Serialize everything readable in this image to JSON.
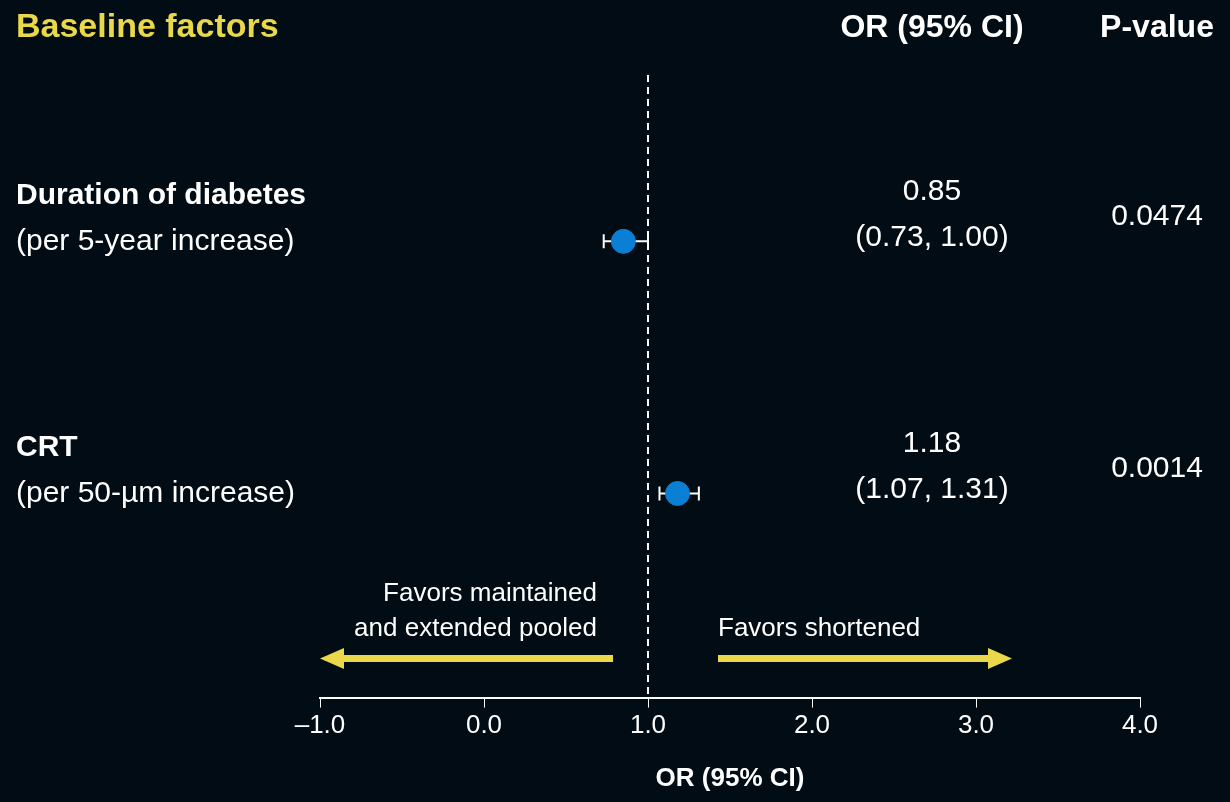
{
  "chart_data": {
    "type": "scatter",
    "title": "Baseline factors",
    "xlabel": "OR (95% CI)",
    "orientation": "horizontal",
    "categories": [
      "Duration of diabetes\n(per 5-year increase)",
      "CRT\n(per 50-µm increase)"
    ],
    "series": [
      {
        "color": "#0a7fd4",
        "values": [
          0.85,
          1.18
        ],
        "errors": [
          [
            0.73,
            1.0
          ],
          [
            1.07,
            1.31
          ]
        ]
      }
    ],
    "xlim": [
      -1,
      4
    ],
    "xticks": [
      {
        "value": -1,
        "label": "–1.0"
      },
      {
        "value": 0,
        "label": "0.0"
      },
      {
        "value": 1,
        "label": "1.0"
      },
      {
        "value": 2,
        "label": "2.0"
      },
      {
        "value": 3,
        "label": "3.0"
      },
      {
        "value": 4,
        "label": "4.0"
      }
    ],
    "ref_lines": [
      {
        "axis": "x",
        "value": 1,
        "color": "#ffffff",
        "line_style": "dashed"
      }
    ],
    "annotations": [
      "OR (95% CI)",
      "P-value",
      "0.85\n(0.73, 1.00)",
      "1.18\n(1.07, 1.31)",
      "0.0474",
      "0.0014",
      "Favors maintained\nand extended pooled",
      "Favors shortened"
    ],
    "marker": "circle",
    "grid": false,
    "legend": false
  }
}
